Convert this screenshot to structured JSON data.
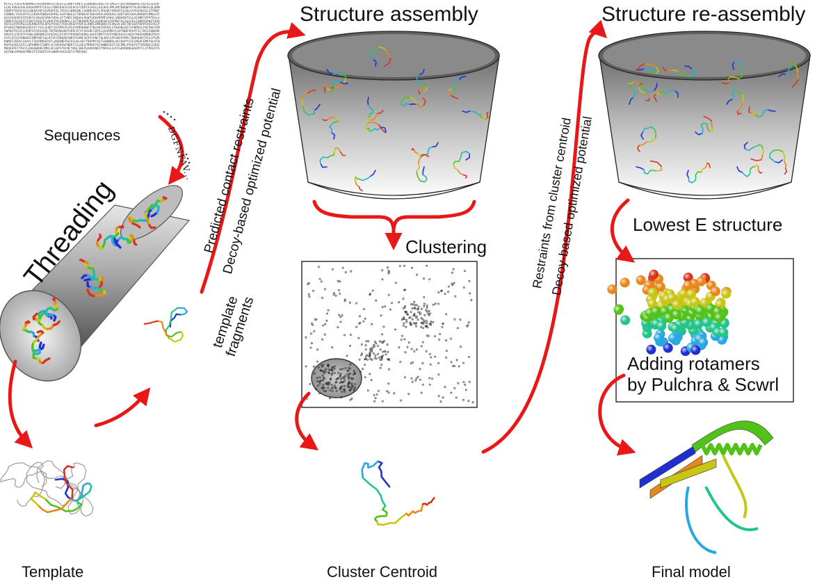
{
  "labels": {
    "sequences": "Sequences",
    "threading": "Threading",
    "template": "Template",
    "template_fragments_line1": "template",
    "template_fragments_line2": "fragments",
    "arrow1_line1": "Predicted contact restraints",
    "arrow1_line2": "Decoy-based optimized potential",
    "structure_assembly": "Structure assembly",
    "clustering": "Clustering",
    "cluster_centroid": "Cluster Centroid",
    "arrow2_line1": "Restraints from cluster centroid",
    "arrow2_line2": "Decoy-based optimized potential",
    "structure_reassembly": "Structure re-assembly",
    "lowest_e": "Lowest E structure",
    "rotamers_line1": "Adding rotamers",
    "rotamers_line2": "by Pulchra & Scwrl",
    "final_model": "Final model",
    "sequence_fragment": "DGFNFAV...",
    "sequence_text": "MCFELTCKSFKANVMDLFKEANPNVLQTVEDCSLQMDYIRNTLEGQWANEGDRETSFIMEGFTDGLKKWQNAGTVQTRLSEAAFELNLPVKAEVALKVQAGMPVTGESLLYNRSDSEVLREAGSYIRRTALKDLLAEGKSLPMLVNTDNQWYDTALREANRSLDLGMNVQNPVTREQFAEGLWKQASRFGEVRAPEELTHSVLGNDKANLIAQKMLDGTLPDGQKYVMAAFEEGHLAYPGVAKVSLGTPNDFEANRKLTASGFRYLSIENAFDNQVGAPRELALRYNQGLETRPWEAFFNGAVHVLHSKKAELSDDTQPEGKVLMARWYEMNGLRTQGSSVAENFHIPSVDTLQQGAEGRKYVDHLAFTSNPLENQAALRGWTGDKVRPMFSAKELGNDHQWTGSLAEVNRYVPPTKALGEDMAFEVLREGTSSNIYAQGFDLVKHCPAEVRQNSLLGFTRKDKMEPQLSAGNEWIVYDPHKTALASGFRLEGNDVQPWSTAHQAKFGLNTRSMLEGAEKNEAFRLDPGVYHSQTYEKLNAGFPVDFSLANRCEMHQWAGTEVKLDLSRETNFGGRYDAPEVQIHSLPDFVKEQTWNARGEKDSVYTAILGHNTCDIAMFEPLRSGYDMVQKWFETNLRVEAPGDLSTQHANLKEYSFNRDGLPVCVKAYEMSWRDQTAIGFLHENPVYEKSGARLTDFMVQNLWEPSKRCHTAYVGENFIDPELQSARMKYLGDTWNEVRAPFSLTHGIVQNEDKGMSAYLFDCRTPAVWLGNRQMEESVHIKGLDTAPYFNSRWEVQDKLGHAFSMRTCVEPYNDIKAGFLWQSTRHEVGMDNLPKAYESFLRTQIGVNDWCEHMPAKFSGLRTVEYDNQADIWKFPGHMLSERVTANCYQLDKGIPEGWFRSMVLTNHDQAKYFEGLPSVRDWMQTENIKCGAHYLFSDVRMAEPQTLWGKNNFRSEVIGHLAQYTDKPMCVEFSGNWRDLAKTQHPYVIESMGAFEMRYDLKTWNVPSGHQIEAFCLDRVNMKSTQWPLGGYHEKAVFNDRTSILQELPMVKDYGFAWNRSEHTIQCKMLAPGDVYFTWSRNGLEQHIMKDAVPFCTRSYLENGQWDHKIMRLVEGAPSTDFNCYKQLSWEPGAHRVNDITMFKSLEQYEGWVRKNGHADPTCLIFMSEVTRQGYKWLDPNAHCMRESFIVGKDTQYLWNPEHAGVSRTLFMDYQKC"
  },
  "colors": {
    "arrow_red": "#e81818",
    "cylinder_gray": "#9a9a9a",
    "rainbow": [
      "#1f2fd0",
      "#2aa7df",
      "#22c48a",
      "#52c21a",
      "#c9c514",
      "#e8871b",
      "#d8341b"
    ]
  },
  "icons": {
    "threading_cylinder": "cylinder-icon",
    "conformation_bucket": "bucket-icon",
    "cluster_ellipse": "cluster-ellipse-icon"
  }
}
